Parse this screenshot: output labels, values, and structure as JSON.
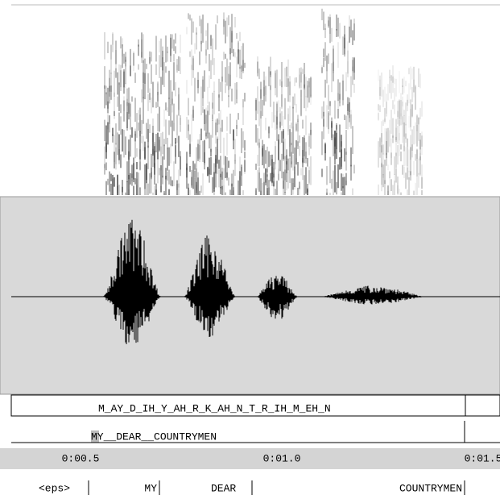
{
  "phoneme_tier": {
    "text": "M_AY_D_IH_Y_AH_R_K_AH_N_T_R_IH_M_EH_N"
  },
  "word_tier": {
    "text": "MY__DEAR__COUNTRYMEN"
  },
  "time_ruler": {
    "labels": [
      "0:00.5",
      "0:01.0",
      "0:01.5"
    ]
  },
  "words": [
    "<eps>",
    "MY",
    "DEAR",
    "COUNTRYMEN"
  ]
}
